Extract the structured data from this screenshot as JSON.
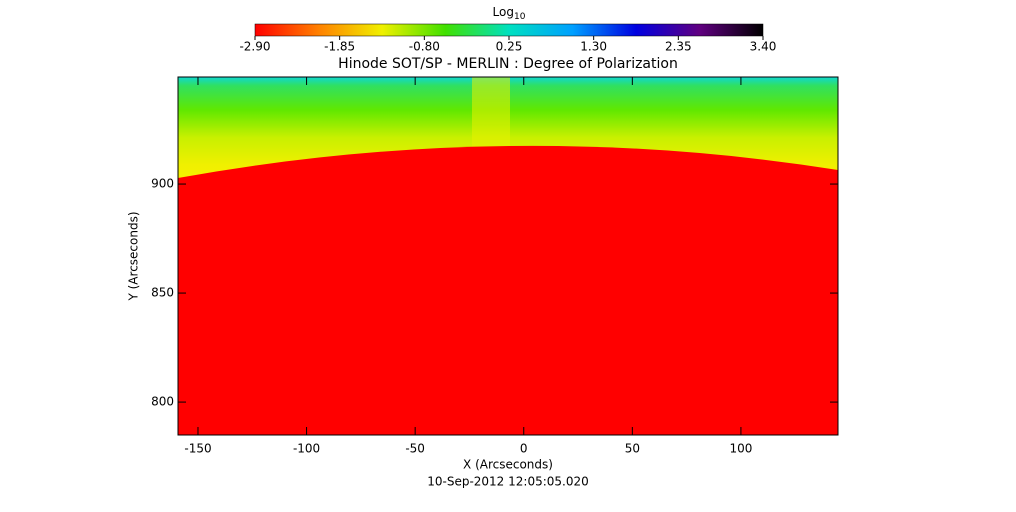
{
  "chart_data": {
    "type": "image",
    "title": "Hinode SOT/SP - MERLIN : Degree of Polarization",
    "xlabel": "X (Arcseconds)",
    "ylabel": "Y (Arcseconds)",
    "date": "10-Sep-2012 12:05:05.020",
    "xlim": [
      -159.2,
      144.7
    ],
    "ylim": [
      784.9,
      949.1
    ],
    "xticks": [
      -150,
      -100,
      -50,
      0,
      50,
      100
    ],
    "yticks": [
      800,
      850,
      900
    ],
    "colorbar": {
      "title": {
        "text": "Log",
        "subscript": "10"
      },
      "clim": [
        -2.9,
        3.4
      ],
      "ticks": [
        {
          "value": -2.9,
          "label": "-2.90"
        },
        {
          "value": -1.85,
          "label": "-1.85"
        },
        {
          "value": -0.8,
          "label": "-0.80"
        },
        {
          "value": 0.25,
          "label": "0.25"
        },
        {
          "value": 1.3,
          "label": "1.30"
        },
        {
          "value": 2.35,
          "label": "2.35"
        },
        {
          "value": 3.4,
          "label": "3.40"
        }
      ],
      "colormap": [
        "#ff0000",
        "#ff8000",
        "#f0f000",
        "#40e000",
        "#00e0c0",
        "#00a0ff",
        "#0000e0",
        "#600080",
        "#000000"
      ]
    }
  }
}
